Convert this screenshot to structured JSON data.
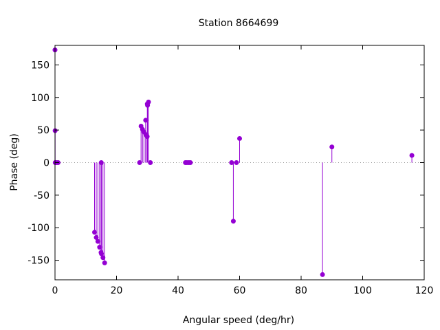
{
  "chart_data": {
    "type": "stem",
    "title": "Station 8664699",
    "xlabel": "Angular speed (deg/hr)",
    "ylabel": "Phase (deg)",
    "xlim": [
      0,
      120
    ],
    "ylim": [
      -180,
      180
    ],
    "xticks": [
      0,
      20,
      40,
      60,
      80,
      100,
      120
    ],
    "yticks": [
      -150,
      -100,
      -50,
      0,
      50,
      100,
      150
    ],
    "zero_line": true,
    "color": "#9400d3",
    "points": [
      {
        "x": 0.0,
        "y": 173
      },
      {
        "x": 0.04,
        "y": 49
      },
      {
        "x": 0.08,
        "y": 0
      },
      {
        "x": 0.5,
        "y": 0
      },
      {
        "x": 1.0,
        "y": 0
      },
      {
        "x": 12.85,
        "y": -107
      },
      {
        "x": 13.4,
        "y": -115
      },
      {
        "x": 13.94,
        "y": -121
      },
      {
        "x": 14.5,
        "y": -130
      },
      {
        "x": 14.96,
        "y": -138
      },
      {
        "x": 15.04,
        "y": 0
      },
      {
        "x": 15.1,
        "y": -140
      },
      {
        "x": 15.59,
        "y": -146
      },
      {
        "x": 16.14,
        "y": -154
      },
      {
        "x": 27.5,
        "y": 0
      },
      {
        "x": 27.97,
        "y": 56
      },
      {
        "x": 28.44,
        "y": 51
      },
      {
        "x": 28.9,
        "y": 47
      },
      {
        "x": 29.46,
        "y": 65
      },
      {
        "x": 29.53,
        "y": 43
      },
      {
        "x": 29.96,
        "y": 40
      },
      {
        "x": 30.0,
        "y": 90
      },
      {
        "x": 30.08,
        "y": 88
      },
      {
        "x": 30.4,
        "y": 93
      },
      {
        "x": 31.0,
        "y": 0
      },
      {
        "x": 42.4,
        "y": 0
      },
      {
        "x": 42.9,
        "y": 0
      },
      {
        "x": 43.5,
        "y": 0
      },
      {
        "x": 44.0,
        "y": 0
      },
      {
        "x": 57.4,
        "y": 0
      },
      {
        "x": 57.97,
        "y": -90
      },
      {
        "x": 58.98,
        "y": 0
      },
      {
        "x": 60.0,
        "y": 37
      },
      {
        "x": 86.95,
        "y": -172
      },
      {
        "x": 90.0,
        "y": 24
      },
      {
        "x": 116.0,
        "y": 11
      }
    ]
  }
}
